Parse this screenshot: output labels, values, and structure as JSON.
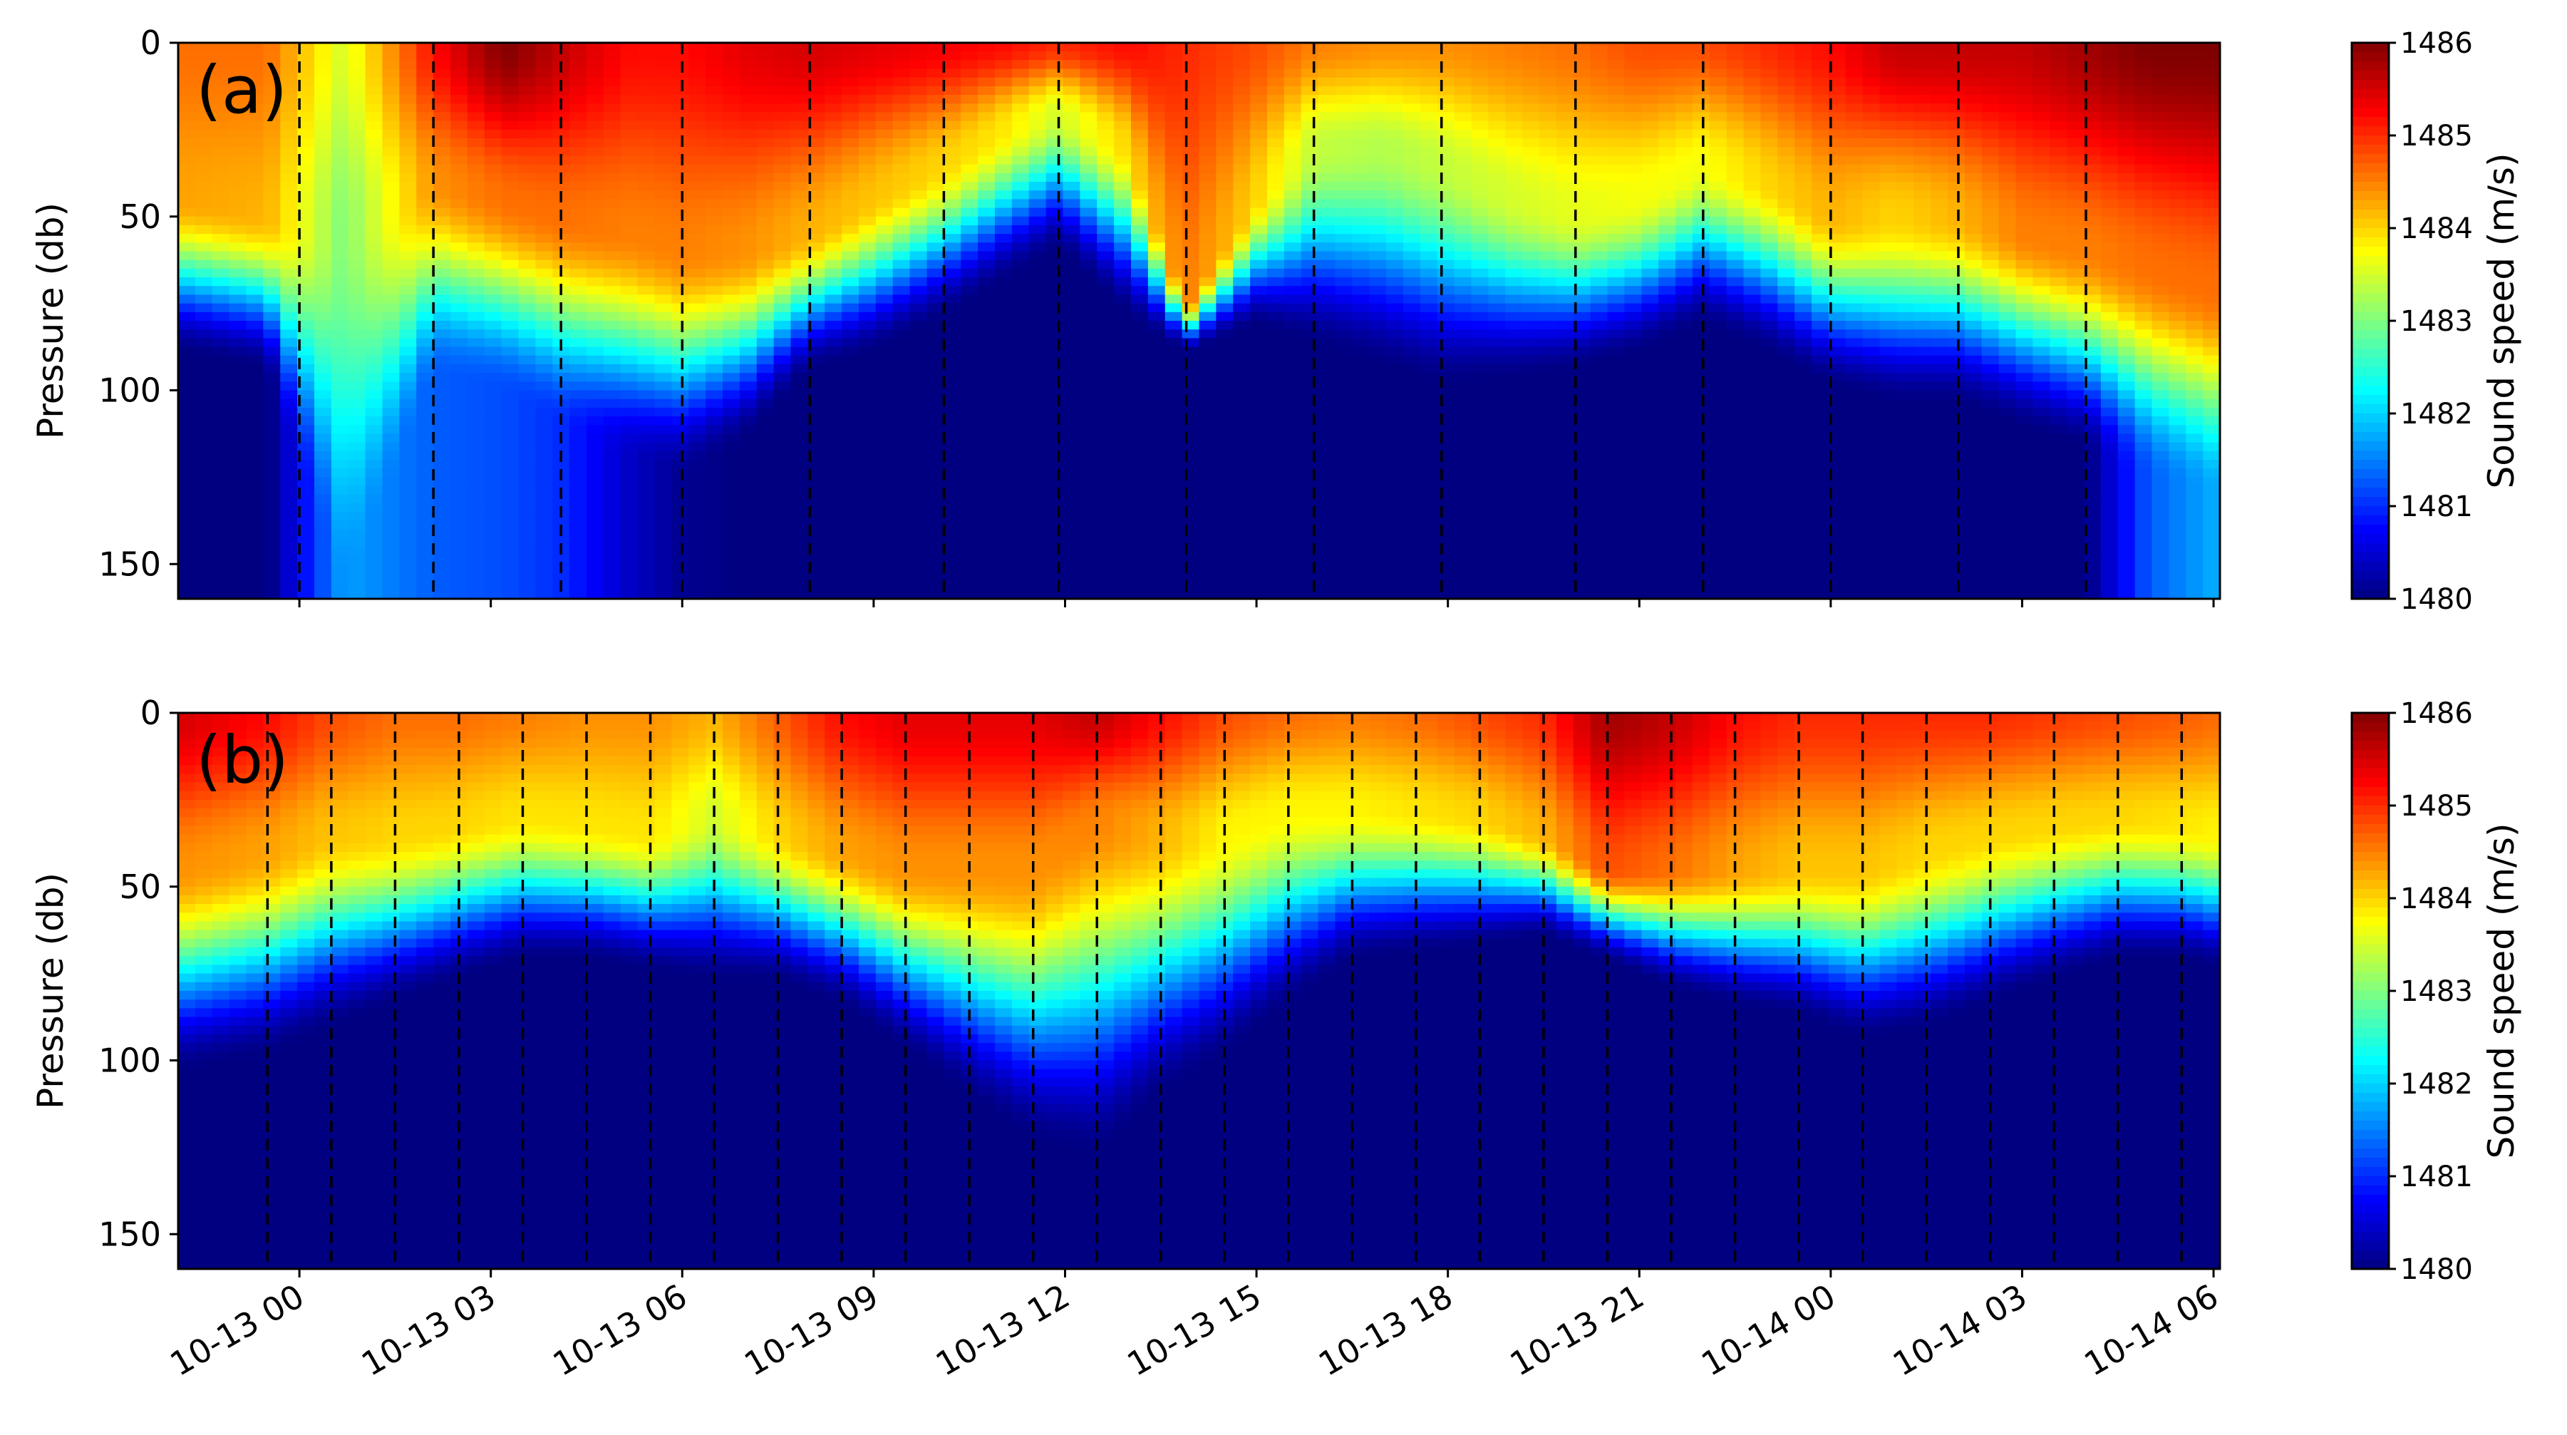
{
  "chart_data": [
    {
      "panel": "(a)",
      "type": "heatmap",
      "ylabel": "Pressure (db)",
      "ylim": [
        160,
        0
      ],
      "y_ticks": [
        "0",
        "50",
        "100",
        "150"
      ],
      "x_ticks": [
        "10-13 00",
        "10-13 03",
        "10-13 06",
        "10-13 09",
        "10-13 12",
        "10-13 15",
        "10-13 18",
        "10-13 21",
        "10-14 00",
        "10-14 03",
        "10-14 06"
      ],
      "x_hours": [
        0,
        3,
        6,
        9,
        12,
        15,
        18,
        21,
        24,
        27,
        30
      ],
      "x_range_hours": [
        -1.9,
        30.1
      ],
      "colorbar": {
        "label": "Sound speed (m/s)",
        "min": 1480,
        "max": 1486,
        "ticks": [
          "1480",
          "1481",
          "1482",
          "1483",
          "1484",
          "1485",
          "1486"
        ]
      },
      "cast_hours": [
        0,
        2.1,
        4.1,
        6,
        8,
        10.1,
        11.9,
        13.9,
        15.9,
        17.9,
        20,
        22,
        24,
        26,
        28
      ],
      "profiles": {
        "hours": [
          -1.9,
          -0.5,
          0.7,
          2.1,
          3.2,
          4.1,
          5.2,
          6,
          7,
          8,
          9,
          10.1,
          11,
          11.9,
          13,
          13.9,
          15,
          15.9,
          17,
          17.9,
          19,
          20,
          21,
          22,
          23,
          24,
          25,
          26,
          27,
          28,
          29,
          30.1
        ],
        "surface": [
          1484.6,
          1484.6,
          1483.5,
          1485.2,
          1486,
          1485.6,
          1485.2,
          1485.2,
          1485.4,
          1485.5,
          1485.4,
          1485.3,
          1485.2,
          1485.0,
          1485.2,
          1485.0,
          1484.8,
          1484.5,
          1484.4,
          1484.4,
          1484.5,
          1484.6,
          1484.8,
          1484.8,
          1485.0,
          1485.2,
          1485.6,
          1485.6,
          1485.6,
          1485.8,
          1486,
          1486
        ],
        "mid": [
          1484.3,
          1484.2,
          1483.0,
          1484.4,
          1484.6,
          1484.6,
          1484.5,
          1484.5,
          1484.4,
          1484.2,
          1484.1,
          1484.0,
          1483.9,
          1483.5,
          1484.0,
          1484.5,
          1484.0,
          1483.4,
          1483.3,
          1483.4,
          1483.5,
          1483.6,
          1483.7,
          1483.7,
          1484.0,
          1484.2,
          1484.0,
          1484.2,
          1484.5,
          1484.5,
          1484.6,
          1484.6
        ],
        "mld": [
          45,
          50,
          55,
          40,
          45,
          50,
          55,
          60,
          60,
          55,
          45,
          35,
          25,
          20,
          30,
          75,
          45,
          30,
          30,
          35,
          45,
          50,
          45,
          35,
          40,
          50,
          50,
          50,
          55,
          60,
          65,
          72
        ],
        "cline": [
          90,
          95,
          160,
          95,
          100,
          110,
          120,
          125,
          115,
          95,
          90,
          80,
          70,
          60,
          80,
          90,
          82,
          88,
          95,
          100,
          98,
          95,
          90,
          82,
          90,
          100,
          105,
          105,
          112,
          118,
          125,
          130
        ],
        "deep": [
          1480.0,
          1480.0,
          1481.7,
          1481.3,
          1481.2,
          1481.0,
          1480.4,
          1480.1,
          1480.0,
          1480.0,
          1480.0,
          1480.0,
          1480.0,
          1480.0,
          1480.0,
          1480.0,
          1480.0,
          1480.0,
          1480.0,
          1480.0,
          1480.0,
          1480.0,
          1480.0,
          1480.0,
          1480.0,
          1480.0,
          1480.0,
          1480.0,
          1480.0,
          1480.0,
          1481.3,
          1481.8
        ]
      }
    },
    {
      "panel": "(b)",
      "type": "heatmap",
      "ylabel": "Pressure (db)",
      "ylim": [
        160,
        0
      ],
      "y_ticks": [
        "0",
        "50",
        "100",
        "150"
      ],
      "x_ticks": [
        "10-13 00",
        "10-13 03",
        "10-13 06",
        "10-13 09",
        "10-13 12",
        "10-13 15",
        "10-13 18",
        "10-13 21",
        "10-14 00",
        "10-14 03",
        "10-14 06"
      ],
      "x_hours": [
        0,
        3,
        6,
        9,
        12,
        15,
        18,
        21,
        24,
        27,
        30
      ],
      "x_range_hours": [
        -1.9,
        30.1
      ],
      "colorbar": {
        "label": "Sound speed (m/s)",
        "min": 1480,
        "max": 1486,
        "ticks": [
          "1480",
          "1481",
          "1482",
          "1483",
          "1484",
          "1485",
          "1486"
        ]
      },
      "cast_hours": [
        -0.5,
        0.5,
        1.5,
        2.5,
        3.5,
        4.5,
        5.5,
        6.5,
        7.5,
        8.5,
        9.5,
        10.5,
        11.5,
        12.5,
        13.5,
        14.5,
        15.5,
        16.5,
        17.5,
        18.5,
        19.5,
        20.5,
        21.5,
        22.5,
        23.5,
        24.5,
        25.5,
        26.5,
        27.5,
        28.5,
        29.5
      ],
      "profiles": {
        "hours": [
          -1.9,
          -0.5,
          0.5,
          1.5,
          2.5,
          3.5,
          4.5,
          5.5,
          6.5,
          7.5,
          8.5,
          9.5,
          10.5,
          11.5,
          12.5,
          13.5,
          14.5,
          15.5,
          16.5,
          17.5,
          18.5,
          19.5,
          20.5,
          21.5,
          22.5,
          23.5,
          24.5,
          25.5,
          26.5,
          27.5,
          28.5,
          29.5,
          30.1
        ],
        "surface": [
          1485.5,
          1485.2,
          1484.8,
          1484.6,
          1484.6,
          1484.5,
          1484.4,
          1484.4,
          1484.2,
          1484.7,
          1485.2,
          1485.4,
          1485.4,
          1485.4,
          1485.6,
          1485.2,
          1484.8,
          1484.6,
          1484.5,
          1484.6,
          1484.8,
          1485.0,
          1485.8,
          1485.6,
          1485.2,
          1485.0,
          1485.0,
          1485.0,
          1485.0,
          1484.9,
          1484.8,
          1484.7,
          1484.6
        ],
        "mid": [
          1484.4,
          1484.3,
          1484.1,
          1484.0,
          1484.0,
          1483.9,
          1483.9,
          1483.9,
          1483.5,
          1484.0,
          1484.3,
          1484.4,
          1484.4,
          1484.4,
          1484.5,
          1484.2,
          1483.8,
          1483.8,
          1483.8,
          1483.9,
          1484.0,
          1484.2,
          1484.8,
          1484.6,
          1484.3,
          1484.1,
          1484.1,
          1484.0,
          1484.0,
          1484.0,
          1484.0,
          1483.9,
          1483.8
        ],
        "mld": [
          45,
          40,
          35,
          35,
          32,
          30,
          32,
          35,
          30,
          35,
          40,
          45,
          45,
          45,
          30,
          35,
          35,
          28,
          28,
          28,
          30,
          35,
          45,
          45,
          45,
          45,
          45,
          40,
          35,
          32,
          30,
          32,
          35
        ],
        "cline": [
          105,
          100,
          92,
          85,
          78,
          72,
          72,
          75,
          78,
          78,
          85,
          98,
          112,
          125,
          130,
          112,
          100,
          85,
          72,
          70,
          68,
          65,
          72,
          80,
          85,
          88,
          95,
          92,
          85,
          78,
          72,
          72,
          75
        ],
        "deep": [
          1480.0,
          1480.0,
          1480.0,
          1480.0,
          1480.0,
          1480.0,
          1480.0,
          1480.0,
          1480.0,
          1480.0,
          1480.0,
          1480.0,
          1480.0,
          1480.0,
          1480.0,
          1480.0,
          1480.0,
          1480.0,
          1480.0,
          1480.0,
          1480.0,
          1480.0,
          1480.0,
          1480.0,
          1480.0,
          1480.0,
          1480.0,
          1480.0,
          1480.0,
          1480.0,
          1480.0,
          1480.0,
          1480.0
        ]
      }
    }
  ]
}
